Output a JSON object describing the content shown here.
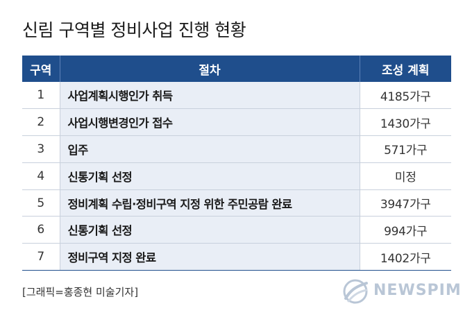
{
  "title": "신림 구역별 정비사업 진행 현황",
  "table": {
    "headers": [
      "구역",
      "절차",
      "조성 계획"
    ],
    "rows": [
      {
        "zone": "1",
        "process": "사업계획시행인가 취득",
        "plan": "4185가구"
      },
      {
        "zone": "2",
        "process": "사업시행변경인가 접수",
        "plan": "1430가구"
      },
      {
        "zone": "3",
        "process": "입주",
        "plan": "571가구"
      },
      {
        "zone": "4",
        "process": "신통기획 선정",
        "plan": "미정"
      },
      {
        "zone": "5",
        "process": "정비계획 수립·정비구역 지정 위한 주민공람 완료",
        "plan": "3947가구"
      },
      {
        "zone": "6",
        "process": "신통기획 선정",
        "plan": "994가구"
      },
      {
        "zone": "7",
        "process": "정비구역 지정 완료",
        "plan": "1402가구"
      }
    ]
  },
  "credit": "[그래픽=홍종현 미술기자]",
  "logo": {
    "text": "NEWSPIM",
    "icon": "newspim-logo-icon"
  },
  "colors": {
    "header_bg": "#1f4e8c",
    "process_bg": "#e9eef6",
    "logo_color": "#b9c6d6"
  }
}
